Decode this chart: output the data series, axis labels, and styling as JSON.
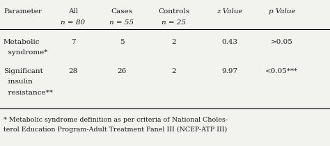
{
  "col_headers_line1": [
    "Parameter",
    "All",
    "Cases",
    "Controls",
    "z Value",
    "p Value"
  ],
  "col_headers_line2": [
    "",
    "n = 80",
    "n = 55",
    "n = 25",
    "",
    ""
  ],
  "rows": [
    {
      "param_lines": [
        "Metabolic",
        "  syndrome*"
      ],
      "all": "7",
      "cases": "5",
      "controls": "2",
      "z_value": "0.43",
      "p_value": ">0.05"
    },
    {
      "param_lines": [
        "Significant",
        "  insulin",
        "  resistance**"
      ],
      "all": "28",
      "cases": "26",
      "controls": "2",
      "z_value": "9.97",
      "p_value": "<0.05***"
    }
  ],
  "footnote_line1": "* Metabolic syndrome definition as per criteria of National Choles-",
  "footnote_line2": "terol Education Program-Adult Treatment Panel III (NCEP-ATP III)",
  "col_xs_inches": [
    0.05,
    1.05,
    1.75,
    2.5,
    3.3,
    4.05
  ],
  "col_aligns": [
    "left",
    "center",
    "center",
    "center",
    "center",
    "center"
  ],
  "italic_col_indices": [
    4,
    5
  ],
  "bg_color": "#f2f2ee",
  "text_color": "#1a1a1a",
  "font_size": 7.5,
  "font_size_footnote": 6.8,
  "font_family": "DejaVu Serif"
}
